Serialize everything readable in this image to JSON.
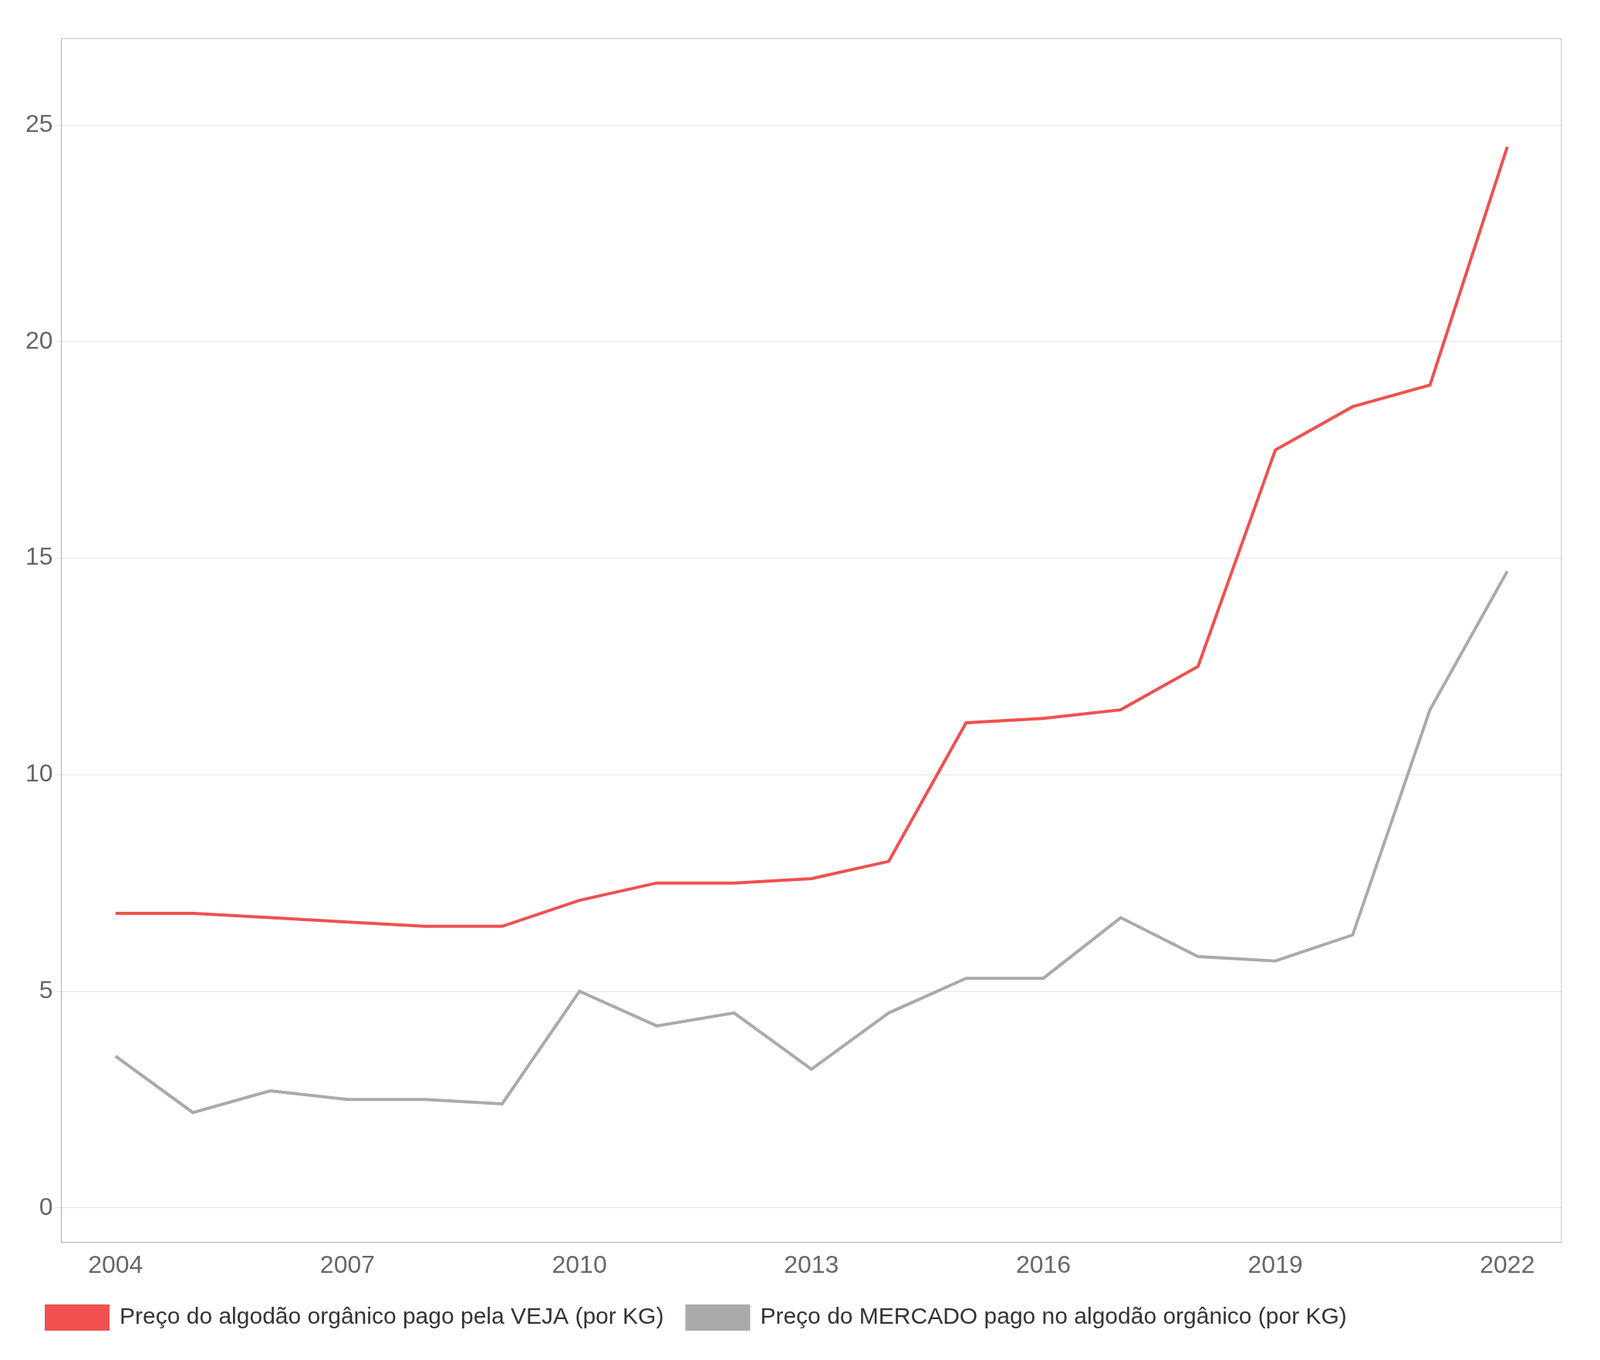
{
  "chart_data": {
    "type": "line",
    "x": [
      2004,
      2005,
      2006,
      2007,
      2008,
      2009,
      2010,
      2011,
      2012,
      2013,
      2014,
      2015,
      2016,
      2017,
      2018,
      2019,
      2020,
      2021,
      2022
    ],
    "series": [
      {
        "name": "Preço do algodão orgânico pago pela VEJA (por KG)",
        "color": "#f05050",
        "values": [
          6.8,
          6.8,
          6.7,
          6.6,
          6.5,
          6.5,
          7.1,
          7.5,
          7.5,
          7.6,
          8.0,
          11.2,
          11.3,
          11.5,
          12.5,
          17.5,
          18.5,
          19.0,
          24.5
        ]
      },
      {
        "name": "Preço do MERCADO pago no algodão orgânico (por KG)",
        "color": "#aaaaaa",
        "values": [
          3.5,
          2.2,
          2.7,
          2.5,
          2.5,
          2.4,
          5.0,
          4.2,
          4.5,
          3.2,
          4.5,
          5.3,
          5.3,
          6.7,
          5.8,
          5.7,
          6.3,
          11.5,
          14.7
        ]
      }
    ],
    "xlim": [
      2003.3,
      2022.7
    ],
    "xticks": [
      2004,
      2007,
      2010,
      2013,
      2016,
      2019,
      2022
    ],
    "ylim": [
      -0.8,
      27
    ],
    "yticks": [
      0,
      5,
      10,
      15,
      20,
      25
    ],
    "grid": "y",
    "legend": "bottom"
  }
}
